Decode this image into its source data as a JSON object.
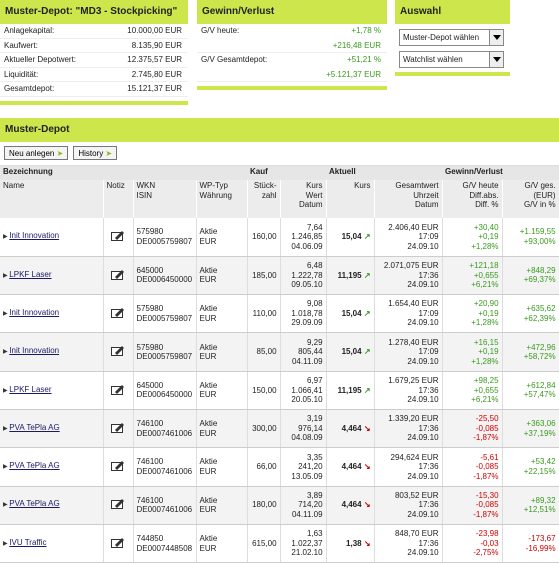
{
  "summary": {
    "title": "Muster-Depot: \"MD3 - Stockpicking\"",
    "rows": [
      [
        "Anlagekapital:",
        "10.000,00 EUR"
      ],
      [
        "Kaufwert:",
        "8.135,90 EUR"
      ],
      [
        "Aktueller Depotwert:",
        "12.375,57 EUR"
      ],
      [
        "Liquidität:",
        "2.745,80 EUR"
      ],
      [
        "Gesamtdepot:",
        "15.121,37 EUR"
      ]
    ]
  },
  "gv": {
    "title": "Gewinn/Verlust",
    "rows": [
      {
        "label": "G/V heute:",
        "pct": "+1,78 %",
        "abs": "+216,48 EUR"
      },
      {
        "label": "G/V Gesamtdepot:",
        "pct": "+51,21 %",
        "abs": "+5.121,37 EUR"
      }
    ]
  },
  "auswahl": {
    "title": "Auswahl",
    "selects": [
      "Muster-Depot wählen",
      "Watchlist wählen"
    ]
  },
  "depot": {
    "title": "Muster-Depot",
    "buttons": [
      "Neu anlegen",
      "History"
    ],
    "groups": [
      "Bezeichnung",
      "Kauf",
      "Aktuell",
      "Gewinn/Verlust"
    ],
    "columns": [
      [
        "Name"
      ],
      [
        "Notiz"
      ],
      [
        "WKN",
        "ISIN"
      ],
      [
        "WP-Typ",
        "Währung"
      ],
      [
        "Stück-",
        "zahl"
      ],
      [
        "Kurs",
        "Wert",
        "Datum"
      ],
      [
        "Kurs"
      ],
      [
        "Gesamtwert",
        "Uhrzeit",
        "Datum"
      ],
      [
        "G/V heute",
        "Diff.abs.",
        "Diff. %"
      ],
      [
        "G/V ges.",
        "(EUR)",
        "G/V in %"
      ]
    ],
    "rows": [
      {
        "name": "Init Innovation",
        "wkn": "575980",
        "isin": "DE0005759807",
        "typ": "Aktie",
        "cur": "EUR",
        "qty": "160,00",
        "kurs": "7,64",
        "wert": "1.246,85",
        "datum": "04.06.09",
        "akt": "15,04",
        "gw": "2.406,40 EUR",
        "zeit": "17:09",
        "datum2": "24.09.10",
        "gvh": "+30,40",
        "diff": "+0,19",
        "pct": "+1,28%",
        "gvg": "+1.159,55",
        "gvp": "+93,00%"
      },
      {
        "name": "LPKF Laser",
        "wkn": "645000",
        "isin": "DE0006450000",
        "typ": "Aktie",
        "cur": "EUR",
        "qty": "185,00",
        "kurs": "6,48",
        "wert": "1.222,78",
        "datum": "09.05.10",
        "akt": "11,195",
        "gw": "2.071,075 EUR",
        "zeit": "17:36",
        "datum2": "24.09.10",
        "gvh": "+121,18",
        "diff": "+0,655",
        "pct": "+6,21%",
        "gvg": "+848,29",
        "gvp": "+69,37%"
      },
      {
        "name": "Init Innovation",
        "wkn": "575980",
        "isin": "DE0005759807",
        "typ": "Aktie",
        "cur": "EUR",
        "qty": "110,00",
        "kurs": "9,08",
        "wert": "1.018,78",
        "datum": "29.09.09",
        "akt": "15,04",
        "gw": "1.654,40 EUR",
        "zeit": "17:09",
        "datum2": "24.09.10",
        "gvh": "+20,90",
        "diff": "+0,19",
        "pct": "+1,28%",
        "gvg": "+635,62",
        "gvp": "+62,39%"
      },
      {
        "name": "Init Innovation",
        "wkn": "575980",
        "isin": "DE0005759807",
        "typ": "Aktie",
        "cur": "EUR",
        "qty": "85,00",
        "kurs": "9,29",
        "wert": "805,44",
        "datum": "04.11.09",
        "akt": "15,04",
        "gw": "1.278,40 EUR",
        "zeit": "17:09",
        "datum2": "24.09.10",
        "gvh": "+16,15",
        "diff": "+0,19",
        "pct": "+1,28%",
        "gvg": "+472,96",
        "gvp": "+58,72%"
      },
      {
        "name": "LPKF Laser",
        "wkn": "645000",
        "isin": "DE0006450000",
        "typ": "Aktie",
        "cur": "EUR",
        "qty": "150,00",
        "kurs": "6,97",
        "wert": "1.066,41",
        "datum": "20.05.10",
        "akt": "11,195",
        "gw": "1.679,25 EUR",
        "zeit": "17:36",
        "datum2": "24.09.10",
        "gvh": "+98,25",
        "diff": "+0,655",
        "pct": "+6,21%",
        "gvg": "+612,84",
        "gvp": "+57,47%"
      },
      {
        "name": "PVA TePla AG",
        "wkn": "746100",
        "isin": "DE0007461006",
        "typ": "Aktie",
        "cur": "EUR",
        "qty": "300,00",
        "kurs": "3,19",
        "wert": "976,14",
        "datum": "04.08.09",
        "akt": "4,464",
        "gw": "1.339,20 EUR",
        "zeit": "17:36",
        "datum2": "24.09.10",
        "gvh": "-25,50",
        "diff": "-0,085",
        "pct": "-1,87%",
        "gvg": "+363,06",
        "gvp": "+37,19%"
      },
      {
        "name": "PVA TePla AG",
        "wkn": "746100",
        "isin": "DE0007461006",
        "typ": "Aktie",
        "cur": "EUR",
        "qty": "66,00",
        "kurs": "3,35",
        "wert": "241,20",
        "datum": "13.05.09",
        "akt": "4,464",
        "gw": "294,624 EUR",
        "zeit": "17:36",
        "datum2": "24.09.10",
        "gvh": "-5,61",
        "diff": "-0,085",
        "pct": "-1,87%",
        "gvg": "+53,42",
        "gvp": "+22,15%"
      },
      {
        "name": "PVA TePla AG",
        "wkn": "746100",
        "isin": "DE0007461006",
        "typ": "Aktie",
        "cur": "EUR",
        "qty": "180,00",
        "kurs": "3,89",
        "wert": "714,20",
        "datum": "04.11.09",
        "akt": "4,464",
        "gw": "803,52 EUR",
        "zeit": "17:36",
        "datum2": "24.09.10",
        "gvh": "-15,30",
        "diff": "-0,085",
        "pct": "-1,87%",
        "gvg": "+89,32",
        "gvp": "+12,51%"
      },
      {
        "name": "IVU Traffic",
        "wkn": "744850",
        "isin": "DE0007448508",
        "typ": "Aktie",
        "cur": "EUR",
        "qty": "615,00",
        "kurs": "1,63",
        "wert": "1.022,37",
        "datum": "21.02.10",
        "akt": "1,38",
        "gw": "848,70 EUR",
        "zeit": "17:36",
        "datum2": "24.09.10",
        "gvh": "-23,98",
        "diff": "-0,03",
        "pct": "-2,75%",
        "gvg": "-173,67",
        "gvp": "-16,99%"
      }
    ]
  }
}
